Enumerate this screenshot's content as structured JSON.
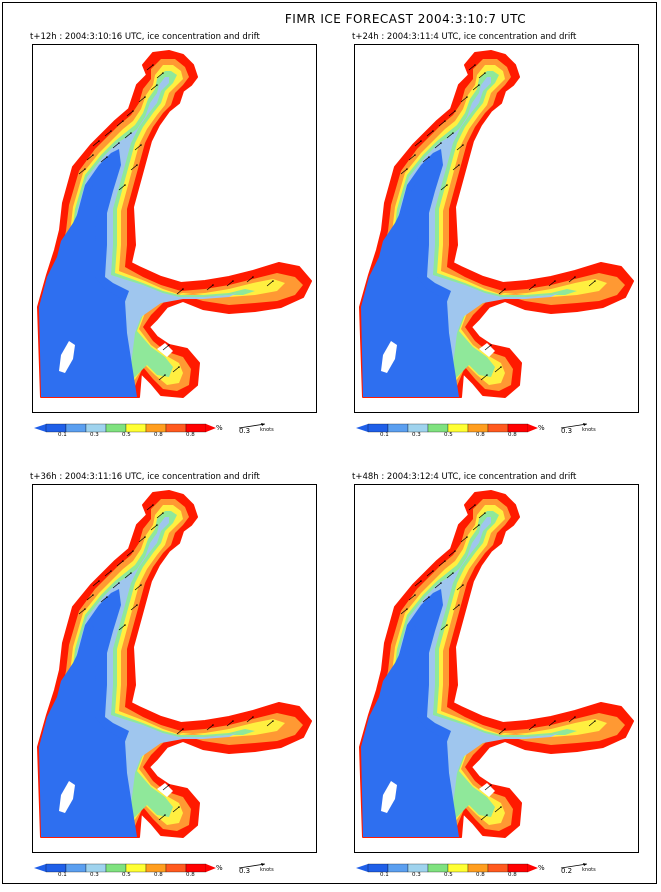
{
  "title": "FIMR ICE FORECAST 2004:3:10:7 UTC",
  "legend": {
    "ticks": [
      "0.1",
      "0.3",
      "0.5",
      "0.8",
      "0.8"
    ],
    "unit": "%",
    "colors": [
      "#1f5fe8",
      "#5b9ff0",
      "#9fd3ee",
      "#7fe27f",
      "#ffff33",
      "#ff9e1f",
      "#ff5a1f",
      "#ff0000"
    ]
  },
  "colors": {
    "open_water": "#2e6ff0",
    "medium_ice": "#9fc6ee",
    "thin_ice": "#8fe89a",
    "yellow_ice": "#ffef40",
    "orange_ice": "#ff9933",
    "dense_ice": "#ff1a00",
    "land": "#ffffff",
    "outline": "#000000"
  },
  "panels": [
    {
      "title": "t+12h : 2004:3:10:16 UTC, ice concentration and drift",
      "scale_value": "0.3",
      "scale_unit": "knots"
    },
    {
      "title": "t+24h : 2004:3:11:4 UTC, ice concentration and drift",
      "scale_value": "0.3",
      "scale_unit": "knots"
    },
    {
      "title": "t+36h : 2004:3:11:16 UTC, ice concentration and drift",
      "scale_value": "0.3",
      "scale_unit": "knots"
    },
    {
      "title": "t+48h : 2004:3:12:4 UTC, ice concentration and drift",
      "scale_value": "0.2",
      "scale_unit": "knots"
    }
  ]
}
